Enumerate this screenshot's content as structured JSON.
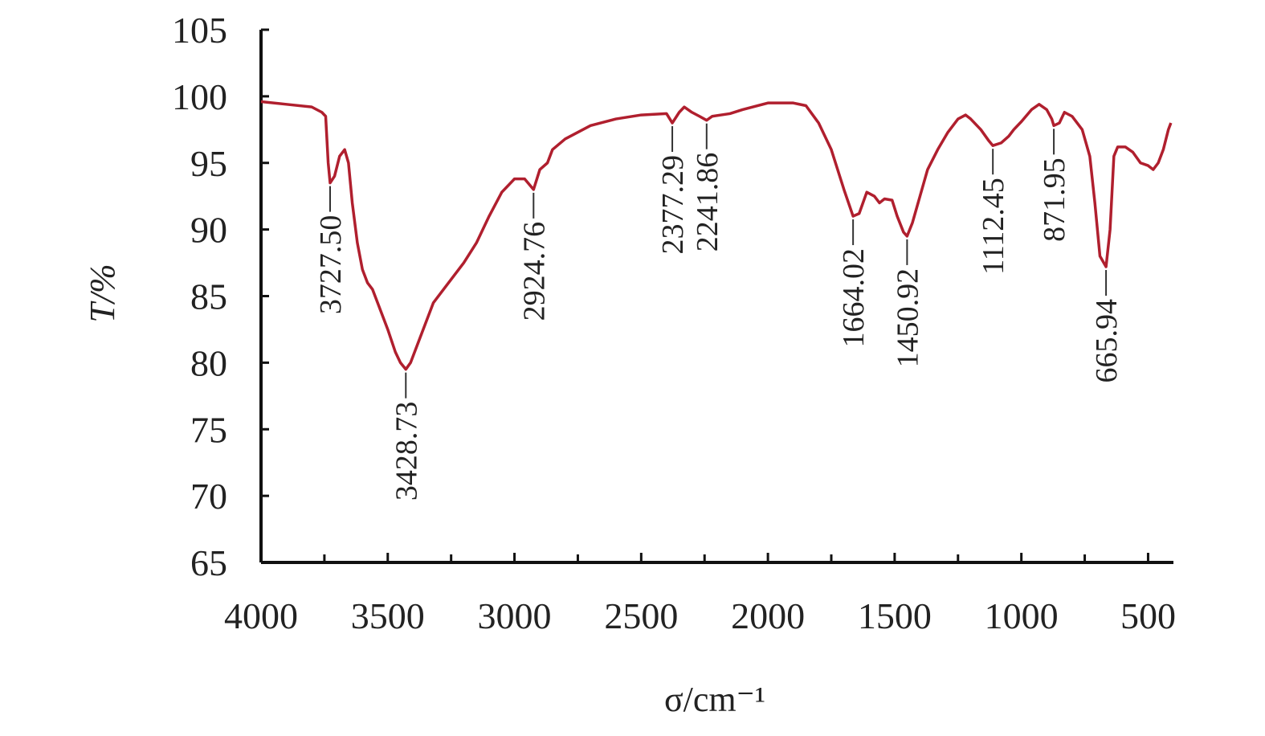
{
  "chart_data": {
    "type": "line",
    "ylabel": "T/%",
    "xlabel": "σ/cm⁻¹",
    "xlim": [
      4000,
      400
    ],
    "ylim": [
      65,
      105
    ],
    "xticks": [
      4000,
      3500,
      3000,
      2500,
      2000,
      1500,
      1000,
      500
    ],
    "xminorticks": [
      3750,
      3250,
      2750,
      2250,
      1750,
      1250,
      750
    ],
    "yticks": [
      65,
      70,
      75,
      80,
      85,
      90,
      95,
      100,
      105
    ],
    "series": [
      {
        "color": "#b01f2e",
        "x": [
          4000,
          3900,
          3800,
          3760,
          3745,
          3735,
          3727.5,
          3710,
          3690,
          3670,
          3655,
          3640,
          3620,
          3600,
          3580,
          3560,
          3530,
          3500,
          3470,
          3450,
          3428.73,
          3410,
          3380,
          3350,
          3320,
          3280,
          3200,
          3150,
          3100,
          3050,
          3000,
          2960,
          2924.76,
          2900,
          2870,
          2850,
          2800,
          2700,
          2600,
          2500,
          2400,
          2377.29,
          2350,
          2330,
          2300,
          2270,
          2241.86,
          2220,
          2150,
          2100,
          2000,
          1900,
          1850,
          1800,
          1750,
          1700,
          1664.02,
          1640,
          1610,
          1580,
          1560,
          1540,
          1510,
          1490,
          1465,
          1450.92,
          1430,
          1400,
          1370,
          1330,
          1290,
          1250,
          1220,
          1200,
          1160,
          1130,
          1112.45,
          1080,
          1050,
          1030,
          1000,
          960,
          930,
          900,
          880,
          871.95,
          850,
          830,
          800,
          760,
          730,
          710,
          690,
          665.94,
          650,
          635,
          620,
          590,
          560,
          530,
          500,
          480,
          460,
          440,
          420,
          410
        ],
        "values": [
          99.6,
          99.4,
          99.2,
          98.8,
          98.5,
          95,
          93.5,
          94,
          95.5,
          96,
          95,
          92,
          89,
          87,
          86,
          85.5,
          84,
          82.5,
          80.8,
          80,
          79.5,
          80,
          81.5,
          83,
          84.5,
          85.5,
          87.5,
          89,
          91,
          92.8,
          93.8,
          93.8,
          93,
          94.5,
          95,
          96,
          96.8,
          97.8,
          98.3,
          98.6,
          98.7,
          98,
          98.8,
          99.2,
          98.8,
          98.5,
          98.2,
          98.5,
          98.7,
          99,
          99.5,
          99.5,
          99.3,
          98,
          96,
          93,
          91,
          91.2,
          92.8,
          92.5,
          92,
          92.3,
          92.2,
          91,
          89.8,
          89.5,
          90.5,
          92.5,
          94.5,
          96,
          97.3,
          98.3,
          98.6,
          98.3,
          97.5,
          96.7,
          96.3,
          96.5,
          97,
          97.5,
          98.1,
          99,
          99.4,
          99,
          98.3,
          97.8,
          98,
          98.8,
          98.5,
          97.5,
          95.5,
          92,
          88,
          87.2,
          90,
          95.5,
          96.2,
          96.2,
          95.8,
          95,
          94.8,
          94.5,
          95,
          96,
          97.5,
          98
        ]
      }
    ],
    "annotations": [
      {
        "x": 3727.5,
        "y": 93.5,
        "label": "3727.50"
      },
      {
        "x": 3428.73,
        "y": 79.5,
        "label": "3428.73"
      },
      {
        "x": 2924.76,
        "y": 93,
        "label": "2924.76"
      },
      {
        "x": 2377.29,
        "y": 98,
        "label": "2377.29"
      },
      {
        "x": 2241.86,
        "y": 98.2,
        "label": "2241.86"
      },
      {
        "x": 1664.02,
        "y": 91,
        "label": "1664.02"
      },
      {
        "x": 1450.92,
        "y": 89.5,
        "label": "1450.92"
      },
      {
        "x": 1112.45,
        "y": 96.3,
        "label": "1112.45"
      },
      {
        "x": 871.95,
        "y": 97.8,
        "label": "871.95"
      },
      {
        "x": 665.94,
        "y": 87.2,
        "label": "665.94"
      }
    ]
  }
}
